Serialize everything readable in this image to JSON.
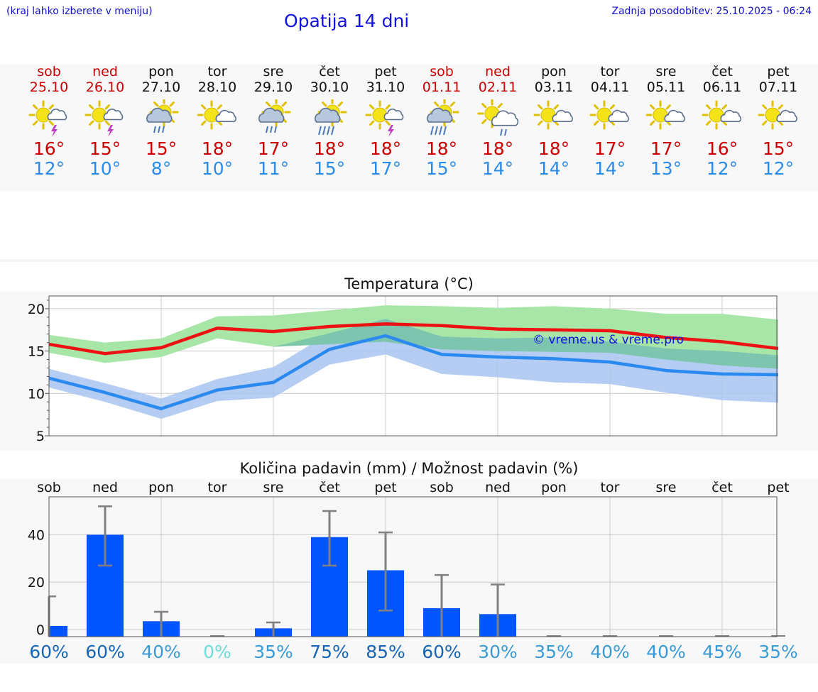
{
  "header": {
    "hint": "(kraj lahko izberete v meniju)",
    "title": "Opatija 14 dni",
    "updated": "Zadnja posodobitev: 25.10.2025 - 06:24"
  },
  "days": [
    {
      "name": "sob",
      "date": "25.10",
      "weekend": true,
      "icon": "sun-thunderstorm-icon",
      "tmax": "16°",
      "tmin": "12°"
    },
    {
      "name": "ned",
      "date": "26.10",
      "weekend": true,
      "icon": "sun-thunderstorm-icon",
      "tmax": "15°",
      "tmin": "10°"
    },
    {
      "name": "pon",
      "date": "27.10",
      "weekend": false,
      "icon": "sun-rain-cloud-icon",
      "tmax": "15°",
      "tmin": "8°"
    },
    {
      "name": "tor",
      "date": "28.10",
      "weekend": false,
      "icon": "sun-small-cloud-icon",
      "tmax": "18°",
      "tmin": "10°"
    },
    {
      "name": "sre",
      "date": "29.10",
      "weekend": false,
      "icon": "sun-rain-cloud-icon",
      "tmax": "17°",
      "tmin": "11°"
    },
    {
      "name": "čet",
      "date": "30.10",
      "weekend": false,
      "icon": "sun-heavy-rain-icon",
      "tmax": "18°",
      "tmin": "15°"
    },
    {
      "name": "pet",
      "date": "31.10",
      "weekend": false,
      "icon": "sun-thunderstorm-icon",
      "tmax": "18°",
      "tmin": "17°"
    },
    {
      "name": "sob",
      "date": "01.11",
      "weekend": true,
      "icon": "sun-heavy-rain-icon",
      "tmax": "18°",
      "tmin": "15°"
    },
    {
      "name": "ned",
      "date": "02.11",
      "weekend": true,
      "icon": "sun-light-rain-icon",
      "tmax": "18°",
      "tmin": "14°"
    },
    {
      "name": "pon",
      "date": "03.11",
      "weekend": false,
      "icon": "sun-small-cloud-icon",
      "tmax": "18°",
      "tmin": "14°"
    },
    {
      "name": "tor",
      "date": "04.11",
      "weekend": false,
      "icon": "sun-small-cloud-icon",
      "tmax": "17°",
      "tmin": "14°"
    },
    {
      "name": "sre",
      "date": "05.11",
      "weekend": false,
      "icon": "sun-small-cloud-icon",
      "tmax": "17°",
      "tmin": "13°"
    },
    {
      "name": "čet",
      "date": "06.11",
      "weekend": false,
      "icon": "sun-small-cloud-icon",
      "tmax": "16°",
      "tmin": "12°"
    },
    {
      "name": "pet",
      "date": "07.11",
      "weekend": false,
      "icon": "sun-small-cloud-icon",
      "tmax": "15°",
      "tmin": "12°"
    }
  ],
  "colors": {
    "max_line": "#ee1111",
    "min_line": "#2b8af0",
    "max_band": "#a8e6a8",
    "min_band": "#a8c4f0",
    "overlap_band": "#78c4a8",
    "precip_bar": "#0055ff",
    "error_bar": "#808080",
    "watermark": "#1010dd"
  },
  "chart_data": [
    {
      "type": "line",
      "title": "Temperatura (°C)",
      "x": [
        "25.10",
        "26.10",
        "27.10",
        "28.10",
        "29.10",
        "30.10",
        "31.10",
        "01.11",
        "02.11",
        "03.11",
        "04.11",
        "05.11",
        "06.11",
        "07.11"
      ],
      "ylim": [
        5,
        21.5
      ],
      "yticks": [
        5,
        10,
        15,
        20
      ],
      "watermark": "© vreme.us & vreme.pro",
      "series": [
        {
          "name": "max",
          "values": [
            15.8,
            14.7,
            15.4,
            17.7,
            17.3,
            17.9,
            18.2,
            18.0,
            17.6,
            17.5,
            17.4,
            16.6,
            16.1,
            15.3
          ],
          "band_low": [
            14.8,
            13.6,
            14.3,
            16.5,
            15.5,
            15.8,
            16.1,
            15.2,
            15.0,
            14.9,
            14.8,
            14.0,
            13.3,
            12.9
          ],
          "band_high": [
            16.9,
            16.0,
            16.5,
            19.1,
            19.2,
            19.8,
            20.4,
            20.3,
            20.1,
            20.3,
            20.0,
            19.4,
            19.4,
            18.7
          ]
        },
        {
          "name": "min",
          "values": [
            11.8,
            10.1,
            8.2,
            10.4,
            11.3,
            15.2,
            16.8,
            14.6,
            14.3,
            14.1,
            13.7,
            12.7,
            12.3,
            12.2
          ],
          "band_low": [
            10.7,
            9.0,
            7.0,
            9.1,
            9.5,
            13.4,
            14.6,
            12.3,
            11.9,
            11.3,
            11.1,
            10.1,
            9.2,
            8.9
          ],
          "band_high": [
            12.9,
            11.2,
            9.4,
            11.7,
            13.1,
            17.1,
            18.8,
            16.7,
            16.5,
            16.6,
            16.1,
            15.3,
            15.0,
            14.5
          ]
        }
      ]
    },
    {
      "type": "bar",
      "title": "Količina padavin (mm) / Možnost padavin (%)",
      "categories": [
        "sob",
        "ned",
        "pon",
        "tor",
        "sre",
        "čet",
        "pet",
        "sob",
        "ned",
        "pon",
        "tor",
        "sre",
        "čet",
        "pet"
      ],
      "values": [
        1.5,
        40,
        3.5,
        0,
        0.5,
        39,
        25,
        9,
        6.5,
        0,
        0,
        0,
        0,
        0
      ],
      "error_low": [
        0,
        27,
        0,
        0,
        0,
        27,
        8,
        0,
        0,
        0,
        0,
        0,
        0,
        0
      ],
      "error_high": [
        14,
        52,
        7.5,
        0,
        3,
        50,
        41,
        23,
        19,
        0,
        0,
        0,
        0,
        0
      ],
      "ylim": [
        -3,
        56
      ],
      "yticks": [
        0,
        20,
        40
      ],
      "probabilities": [
        "60%",
        "60%",
        "40%",
        "0%",
        "35%",
        "75%",
        "85%",
        "60%",
        "30%",
        "35%",
        "40%",
        "40%",
        "45%",
        "35%"
      ],
      "probability_colors": [
        "#1565b8",
        "#1565b8",
        "#3a9ad6",
        "#6fdcdc",
        "#3a9ad6",
        "#1565b8",
        "#1565b8",
        "#1565b8",
        "#3a9ad6",
        "#3a9ad6",
        "#3a9ad6",
        "#3a9ad6",
        "#3a9ad6",
        "#3a9ad6"
      ]
    }
  ]
}
